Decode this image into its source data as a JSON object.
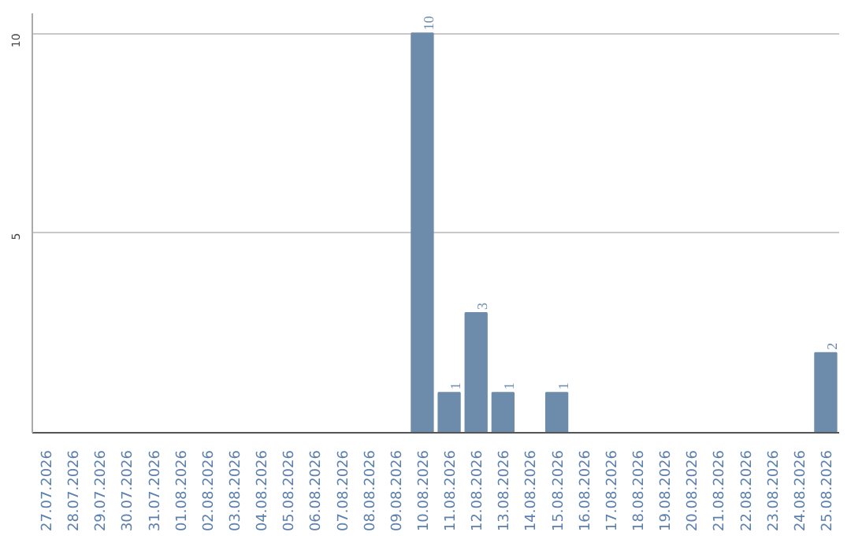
{
  "chart_data": {
    "type": "bar",
    "categories": [
      "27.07.2026",
      "28.07.2026",
      "29.07.2026",
      "30.07.2026",
      "31.07.2026",
      "01.08.2026",
      "02.08.2026",
      "03.08.2026",
      "04.08.2026",
      "05.08.2026",
      "06.08.2026",
      "07.08.2026",
      "08.08.2026",
      "09.08.2026",
      "10.08.2026",
      "11.08.2026",
      "12.08.2026",
      "13.08.2026",
      "14.08.2026",
      "15.08.2026",
      "16.08.2026",
      "17.08.2026",
      "18.08.2026",
      "19.08.2026",
      "20.08.2026",
      "21.08.2026",
      "22.08.2026",
      "23.08.2026",
      "24.08.2026",
      "25.08.2026"
    ],
    "values": [
      0,
      0,
      0,
      0,
      0,
      0,
      0,
      0,
      0,
      0,
      0,
      0,
      0,
      0,
      10,
      1,
      3,
      1,
      0,
      1,
      0,
      0,
      0,
      0,
      0,
      0,
      0,
      0,
      0,
      2
    ],
    "value_labels": [
      null,
      null,
      null,
      null,
      null,
      null,
      null,
      null,
      null,
      null,
      null,
      null,
      null,
      null,
      "10",
      "1",
      "3",
      "1",
      null,
      "1",
      null,
      null,
      null,
      null,
      null,
      null,
      null,
      null,
      null,
      "2"
    ],
    "color": "#6d8cab",
    "ylim": [
      0,
      10.5
    ],
    "yticks": [
      {
        "value": 0,
        "label": null
      },
      5,
      10
    ],
    "grid": "y"
  }
}
